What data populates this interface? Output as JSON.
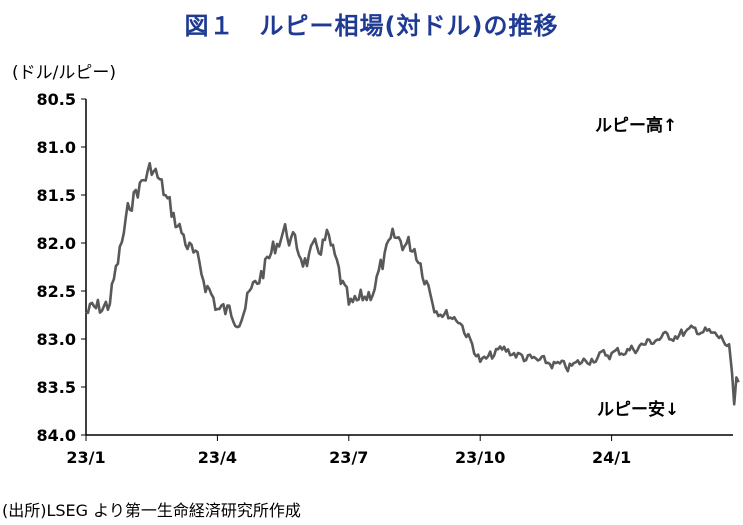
{
  "chart_data": {
    "type": "line",
    "title": "図１　ルピー相場(対ドル)の推移",
    "ylabel": "(ドル/ルピー)",
    "source": "(出所)LSEG より第一生命経済研究所作成",
    "y_inverted": true,
    "ylim": [
      80.5,
      84.0
    ],
    "yticks": [
      "80.5",
      "81.0",
      "81.5",
      "82.0",
      "82.5",
      "83.0",
      "83.5",
      "84.0"
    ],
    "xticks": [
      "23/1",
      "23/4",
      "23/7",
      "23/10",
      "24/1"
    ],
    "annotations": {
      "top": "ルピー高↑",
      "bottom": "ルピー安↓"
    },
    "line_color": "#595959",
    "series": [
      {
        "values_by_half_month": [
          [
            0.0,
            82.72
          ],
          [
            0.5,
            82.65
          ],
          [
            1.0,
            81.55
          ],
          [
            1.5,
            81.2
          ],
          [
            2.0,
            81.75
          ],
          [
            2.5,
            82.2
          ],
          [
            3.0,
            82.7
          ],
          [
            3.5,
            82.75
          ],
          [
            4.0,
            82.3
          ],
          [
            4.5,
            81.85
          ],
          [
            5.0,
            82.2
          ],
          [
            5.5,
            81.95
          ],
          [
            6.0,
            82.7
          ],
          [
            6.5,
            82.5
          ],
          [
            7.0,
            81.95
          ],
          [
            7.5,
            82.05
          ],
          [
            8.0,
            82.7
          ],
          [
            8.5,
            82.8
          ],
          [
            9.0,
            83.25
          ],
          [
            9.5,
            83.1
          ],
          [
            10.0,
            83.2
          ],
          [
            10.5,
            83.25
          ],
          [
            11.0,
            83.3
          ],
          [
            11.5,
            83.2
          ],
          [
            12.0,
            83.15
          ],
          [
            12.5,
            83.1
          ],
          [
            13.0,
            83.0
          ],
          [
            13.5,
            82.95
          ],
          [
            14.0,
            82.9
          ],
          [
            14.5,
            83.0
          ],
          [
            15.0,
            83.3
          ]
        ]
      }
    ]
  }
}
